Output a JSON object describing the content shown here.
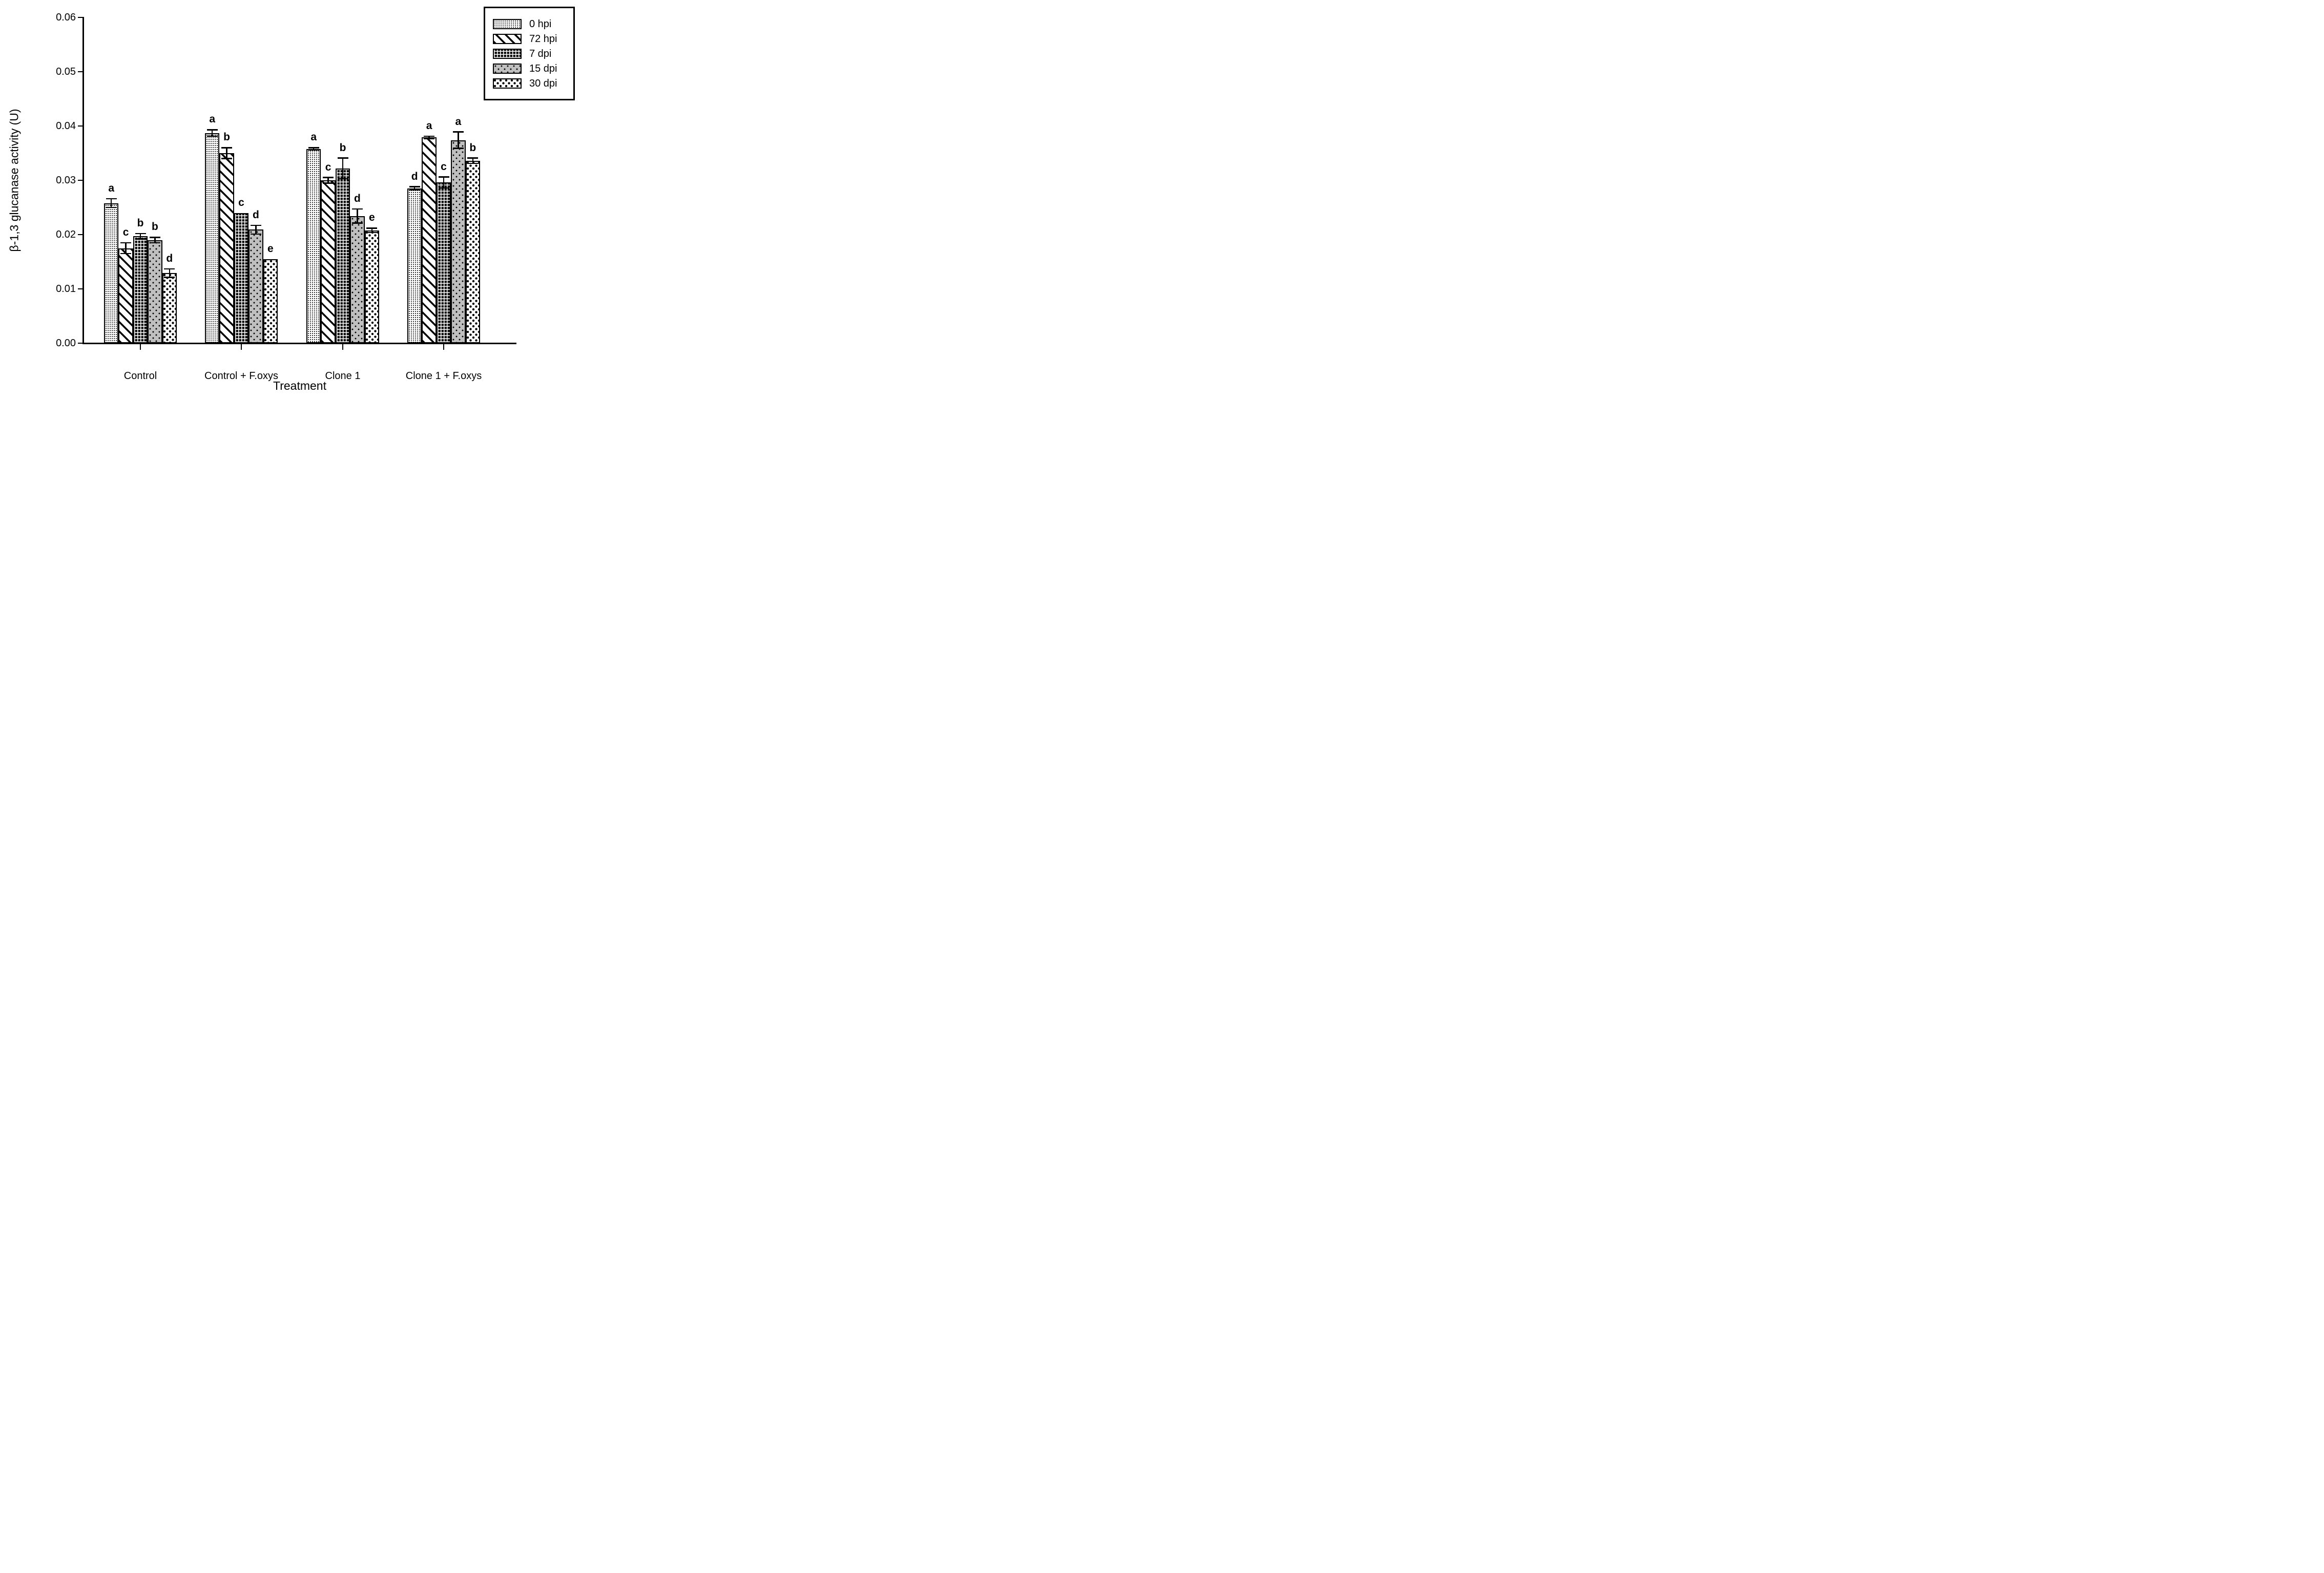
{
  "chart_data": {
    "type": "bar",
    "title": "",
    "xlabel": "Treatment",
    "ylabel": "β-1,3 glucanase activity (U)",
    "ylim": [
      0,
      0.06
    ],
    "ytick_step": 0.01,
    "ytick_labels": [
      "0.00",
      "0.01",
      "0.02",
      "0.03",
      "0.04",
      "0.05",
      "0.06"
    ],
    "grid": false,
    "legend_position": "top-right",
    "categories": [
      "Control",
      "Control + F.oxys",
      "Clone 1",
      "Clone 1 + F.oxys"
    ],
    "series": [
      {
        "name": "0 hpi",
        "pattern": "fine-dots",
        "values": [
          0.0258,
          0.0387,
          0.0358,
          0.0285
        ],
        "errors": [
          0.0008,
          0.0006,
          0.0002,
          0.0003
        ],
        "letters": [
          "a",
          "a",
          "a",
          "d"
        ]
      },
      {
        "name": "72 hpi",
        "pattern": "diagonal-hatch",
        "values": [
          0.0175,
          0.035,
          0.03,
          0.0379
        ],
        "errors": [
          0.001,
          0.001,
          0.0005,
          0.0002
        ],
        "letters": [
          "c",
          "b",
          "c",
          "a"
        ]
      },
      {
        "name": "7 dpi",
        "pattern": "dark-crosshatch",
        "values": [
          0.0197,
          0.024,
          0.0322,
          0.0296
        ],
        "errors": [
          0.0005,
          0,
          0.0019,
          0.001
        ],
        "letters": [
          "b",
          "c",
          "b",
          "c"
        ]
      },
      {
        "name": "15 dpi",
        "pattern": "gray-dots",
        "values": [
          0.019,
          0.0209,
          0.0234,
          0.0374
        ],
        "errors": [
          0.0005,
          0.0008,
          0.0013,
          0.0015
        ],
        "letters": [
          "b",
          "d",
          "d",
          "a"
        ]
      },
      {
        "name": "30 dpi",
        "pattern": "coarse-stipple",
        "values": [
          0.0129,
          0.0155,
          0.0208,
          0.0336
        ],
        "errors": [
          0.0008,
          0,
          0.0004,
          0.0005
        ],
        "letters": [
          "d",
          "e",
          "e",
          "b"
        ]
      }
    ],
    "colors": {
      "foreground": "#000000",
      "background": "#ffffff",
      "gray_fill": "#bfbfbf"
    }
  }
}
